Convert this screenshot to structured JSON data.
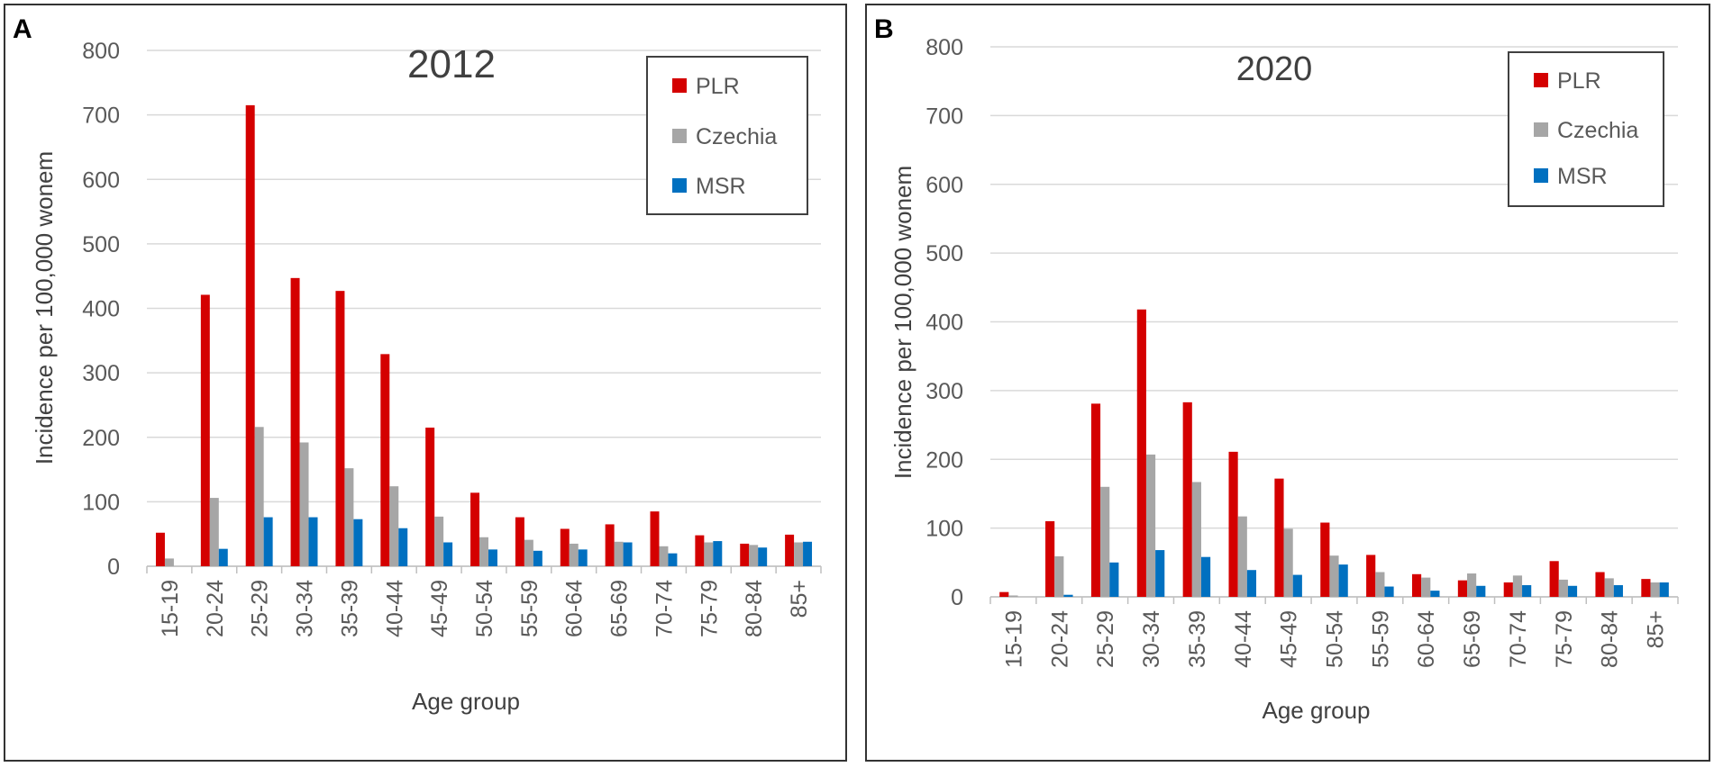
{
  "panels": [
    {
      "letter": "A"
    },
    {
      "letter": "B"
    }
  ],
  "chart_data": [
    {
      "type": "bar",
      "title": "2012",
      "xlabel": "Age group",
      "ylabel": "Incidence per 100,000 wonem",
      "ylim": [
        0,
        800
      ],
      "yticks": [
        0,
        100,
        200,
        300,
        400,
        500,
        600,
        700,
        800
      ],
      "grid": true,
      "legend_position": "top-right",
      "categories": [
        "15-19",
        "20-24",
        "25-29",
        "30-34",
        "35-39",
        "40-44",
        "45-49",
        "50-54",
        "55-59",
        "60-64",
        "65-69",
        "70-74",
        "75-79",
        "80-84",
        "85+"
      ],
      "series": [
        {
          "name": "PLR",
          "color": "#d40000",
          "values": [
            52,
            421,
            715,
            447,
            427,
            329,
            215,
            114,
            76,
            58,
            65,
            85,
            48,
            35,
            49
          ]
        },
        {
          "name": "Czechia",
          "color": "#a6a6a6",
          "values": [
            12,
            106,
            216,
            192,
            152,
            124,
            77,
            45,
            41,
            35,
            38,
            31,
            37,
            33,
            37
          ]
        },
        {
          "name": "MSR",
          "color": "#0070c0",
          "values": [
            0,
            27,
            76,
            76,
            73,
            59,
            37,
            26,
            24,
            26,
            37,
            20,
            39,
            29,
            38
          ]
        }
      ]
    },
    {
      "type": "bar",
      "title": "2020",
      "xlabel": "Age group",
      "ylabel": "Incidence per 100,000 wonem",
      "ylim": [
        0,
        800
      ],
      "yticks": [
        0,
        100,
        200,
        300,
        400,
        500,
        600,
        700,
        800
      ],
      "grid": true,
      "legend_position": "top-right",
      "categories": [
        "15-19",
        "20-24",
        "25-29",
        "30-34",
        "35-39",
        "40-44",
        "45-49",
        "50-54",
        "55-59",
        "60-64",
        "65-69",
        "70-74",
        "75-79",
        "80-84",
        "85+"
      ],
      "series": [
        {
          "name": "PLR",
          "color": "#d40000",
          "values": [
            7,
            110,
            281,
            418,
            283,
            211,
            172,
            108,
            61,
            33,
            24,
            21,
            52,
            36,
            26
          ]
        },
        {
          "name": "Czechia",
          "color": "#a6a6a6",
          "values": [
            2,
            59,
            160,
            207,
            167,
            117,
            99,
            60,
            36,
            28,
            34,
            31,
            25,
            27,
            21
          ]
        },
        {
          "name": "MSR",
          "color": "#0070c0",
          "values": [
            0,
            3,
            50,
            68,
            58,
            39,
            32,
            47,
            15,
            9,
            16,
            17,
            16,
            17,
            21
          ]
        }
      ]
    }
  ]
}
